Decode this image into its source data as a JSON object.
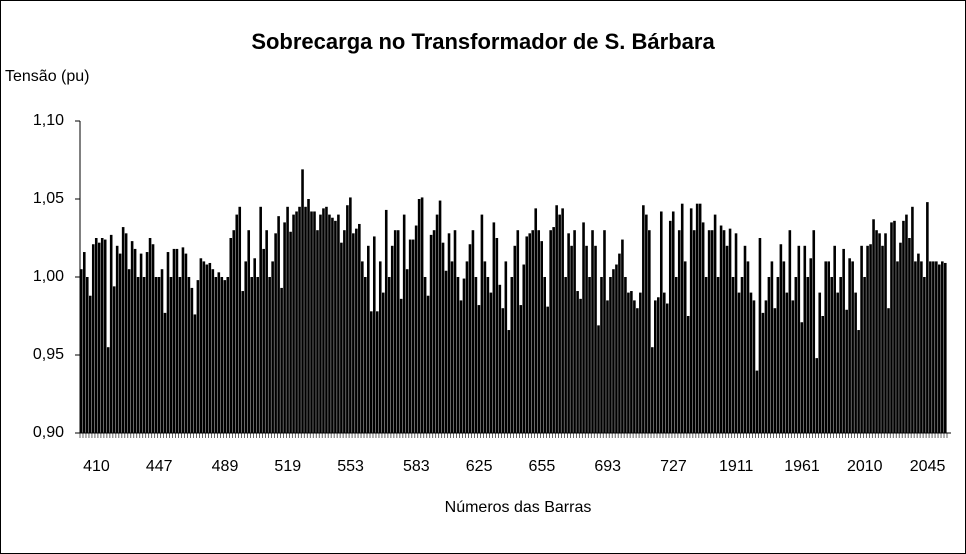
{
  "chart_data": {
    "type": "bar",
    "title": "Sobrecarga no Transformador de S. Bárbara",
    "y_label": "Tensão (pu)",
    "x_label": "Números das Barras",
    "color": "#000000",
    "grid": false,
    "ylim": [
      0.9,
      1.1
    ],
    "yticks": [
      {
        "value": 0.9,
        "label": "0,90"
      },
      {
        "value": 0.95,
        "label": "0,95"
      },
      {
        "value": 1.0,
        "label": "1,00"
      },
      {
        "value": 1.05,
        "label": "1,05"
      },
      {
        "value": 1.1,
        "label": "1,10"
      }
    ],
    "categories": [
      null,
      null,
      null,
      null,
      null,
      "410",
      null,
      null,
      null,
      null,
      null,
      null,
      null,
      null,
      null,
      null,
      null,
      null,
      null,
      null,
      null,
      null,
      null,
      null,
      null,
      null,
      "447",
      null,
      null,
      null,
      null,
      null,
      null,
      null,
      null,
      null,
      null,
      null,
      null,
      null,
      null,
      null,
      null,
      null,
      null,
      null,
      null,
      null,
      "489",
      null,
      null,
      null,
      null,
      null,
      null,
      null,
      null,
      null,
      null,
      null,
      null,
      null,
      null,
      null,
      null,
      null,
      null,
      null,
      null,
      "519",
      null,
      null,
      null,
      null,
      null,
      null,
      null,
      null,
      null,
      null,
      null,
      null,
      null,
      null,
      null,
      null,
      null,
      null,
      null,
      null,
      "553",
      null,
      null,
      null,
      null,
      null,
      null,
      null,
      null,
      null,
      null,
      null,
      null,
      null,
      null,
      null,
      null,
      null,
      null,
      null,
      null,
      null,
      "583",
      null,
      null,
      null,
      null,
      null,
      null,
      null,
      null,
      null,
      null,
      null,
      null,
      null,
      null,
      null,
      null,
      null,
      null,
      null,
      null,
      "625",
      null,
      null,
      null,
      null,
      null,
      null,
      null,
      null,
      null,
      null,
      null,
      null,
      null,
      null,
      null,
      null,
      null,
      null,
      null,
      null,
      "655",
      null,
      null,
      null,
      null,
      null,
      null,
      null,
      null,
      null,
      null,
      null,
      null,
      null,
      null,
      null,
      null,
      null,
      null,
      null,
      null,
      null,
      "693",
      null,
      null,
      null,
      null,
      null,
      null,
      null,
      null,
      null,
      null,
      null,
      null,
      null,
      null,
      null,
      null,
      null,
      null,
      null,
      null,
      null,
      "727",
      null,
      null,
      null,
      null,
      null,
      null,
      null,
      null,
      null,
      null,
      null,
      null,
      null,
      null,
      null,
      null,
      null,
      null,
      null,
      null,
      "1911",
      null,
      null,
      null,
      null,
      null,
      null,
      null,
      null,
      null,
      null,
      null,
      null,
      null,
      null,
      null,
      null,
      null,
      null,
      null,
      null,
      null,
      "1961",
      null,
      null,
      null,
      null,
      null,
      null,
      null,
      null,
      null,
      null,
      null,
      null,
      null,
      null,
      null,
      null,
      null,
      null,
      null,
      null,
      "2010",
      null,
      null,
      null,
      null,
      null,
      null,
      null,
      null,
      null,
      null,
      null,
      null,
      null,
      null,
      null,
      null,
      null,
      null,
      null,
      null,
      "2045",
      null,
      null,
      null,
      null,
      null,
      null
    ],
    "values": [
      1.005,
      1.016,
      1.0,
      0.988,
      1.021,
      1.025,
      1.022,
      1.025,
      1.024,
      0.955,
      1.027,
      0.994,
      1.02,
      1.015,
      1.032,
      1.028,
      1.005,
      1.023,
      1.018,
      1.0,
      1.015,
      1.0,
      1.016,
      1.025,
      1.021,
      1.0,
      1.0,
      1.005,
      0.977,
      1.016,
      1.0,
      1.018,
      1.018,
      1.0,
      1.019,
      1.015,
      1.0,
      0.993,
      0.976,
      0.998,
      1.012,
      1.01,
      1.008,
      1.009,
      1.005,
      1.0,
      1.003,
      1.0,
      0.998,
      1.0,
      1.025,
      1.03,
      1.04,
      1.045,
      0.991,
      1.01,
      1.03,
      1.0,
      1.012,
      1.0,
      1.045,
      1.018,
      1.03,
      1.0,
      1.01,
      1.028,
      1.039,
      0.993,
      1.035,
      1.045,
      1.029,
      1.04,
      1.042,
      1.045,
      1.069,
      1.045,
      1.05,
      1.042,
      1.042,
      1.03,
      1.04,
      1.044,
      1.045,
      1.04,
      1.038,
      1.036,
      1.04,
      1.022,
      1.03,
      1.046,
      1.051,
      1.028,
      1.031,
      1.034,
      1.01,
      1.0,
      1.02,
      0.978,
      1.026,
      0.978,
      1.01,
      0.99,
      1.043,
      1.0,
      1.02,
      1.03,
      1.03,
      0.986,
      1.04,
      1.005,
      1.024,
      1.024,
      1.033,
      1.05,
      1.051,
      1.0,
      0.988,
      1.027,
      1.03,
      1.04,
      1.049,
      1.022,
      1.004,
      1.028,
      1.01,
      1.03,
      1.0,
      0.985,
      0.999,
      1.01,
      1.021,
      1.03,
      1.0,
      0.982,
      1.04,
      1.01,
      1.0,
      0.99,
      1.035,
      1.025,
      0.995,
      0.98,
      1.01,
      0.966,
      1.0,
      1.02,
      1.03,
      0.982,
      1.008,
      1.026,
      1.028,
      1.03,
      1.044,
      1.03,
      1.023,
      1.0,
      0.981,
      1.03,
      1.032,
      1.046,
      1.04,
      1.044,
      1.0,
      1.028,
      1.02,
      1.03,
      0.991,
      0.986,
      1.035,
      1.02,
      1.0,
      1.03,
      1.02,
      0.969,
      1.0,
      1.03,
      0.985,
      1.0,
      1.005,
      1.008,
      1.015,
      1.024,
      1.0,
      0.99,
      0.991,
      0.985,
      0.98,
      0.99,
      1.046,
      1.04,
      1.03,
      0.955,
      0.985,
      0.987,
      1.042,
      0.99,
      0.983,
      1.036,
      1.042,
      1.0,
      1.03,
      1.047,
      1.01,
      0.975,
      1.044,
      1.03,
      1.047,
      1.047,
      1.035,
      1.0,
      1.03,
      1.03,
      1.04,
      1.0,
      1.033,
      1.03,
      1.02,
      1.031,
      1.0,
      1.028,
      0.99,
      1.0,
      1.02,
      1.01,
      0.99,
      0.985,
      0.94,
      1.025,
      0.977,
      0.985,
      1.0,
      1.01,
      0.98,
      1.0,
      1.021,
      1.01,
      0.99,
      1.03,
      0.985,
      1.0,
      1.02,
      0.971,
      1.02,
      1.0,
      1.012,
      1.03,
      0.948,
      0.99,
      0.975,
      1.01,
      1.01,
      1.0,
      1.02,
      0.99,
      1.0,
      1.018,
      0.979,
      1.012,
      1.01,
      0.99,
      0.966,
      1.02,
      1.0,
      1.02,
      1.021,
      1.037,
      1.03,
      1.028,
      1.02,
      1.028,
      0.98,
      1.035,
      1.036,
      1.01,
      1.022,
      1.036,
      1.04,
      1.025,
      1.045,
      1.01,
      1.015,
      1.01,
      1.0,
      1.048,
      1.01,
      1.01,
      1.01,
      1.008,
      1.01,
      1.009
    ]
  }
}
